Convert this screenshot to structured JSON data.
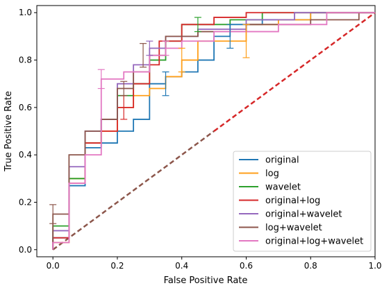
{
  "chart_data": {
    "type": "line",
    "title": "",
    "xlabel": "False Positive Rate",
    "ylabel": "True Positive Rate",
    "xlim": [
      -0.05,
      1.0
    ],
    "ylim": [
      -0.03,
      1.03
    ],
    "xticks": [
      0.0,
      0.2,
      0.4,
      0.6,
      0.8,
      1.0
    ],
    "yticks": [
      0.0,
      0.2,
      0.4,
      0.6,
      0.8,
      1.0
    ],
    "xtick_labels": [
      "0.0",
      "0.2",
      "0.4",
      "0.6",
      "0.8",
      "1.0"
    ],
    "ytick_labels": [
      "0.0",
      "0.2",
      "0.4",
      "0.6",
      "0.8",
      "1.0"
    ],
    "grid": false,
    "legend_position": "lower-right",
    "diagonal": {
      "points": [
        [
          0.0,
          0.0
        ],
        [
          1.0,
          1.0
        ]
      ],
      "colors": [
        "#8c564b",
        "#d62728"
      ],
      "style": "dashed"
    },
    "series": [
      {
        "name": "original",
        "color": "#1f77b4",
        "points": [
          [
            0,
            0
          ],
          [
            0,
            0.05
          ],
          [
            0.05,
            0.05
          ],
          [
            0.05,
            0.27
          ],
          [
            0.1,
            0.27
          ],
          [
            0.1,
            0.43
          ],
          [
            0.15,
            0.43
          ],
          [
            0.15,
            0.45
          ],
          [
            0.2,
            0.45
          ],
          [
            0.2,
            0.5
          ],
          [
            0.25,
            0.5
          ],
          [
            0.25,
            0.55
          ],
          [
            0.3,
            0.55
          ],
          [
            0.3,
            0.7
          ],
          [
            0.35,
            0.7
          ],
          [
            0.35,
            0.73
          ],
          [
            0.4,
            0.73
          ],
          [
            0.4,
            0.75
          ],
          [
            0.45,
            0.75
          ],
          [
            0.45,
            0.8
          ],
          [
            0.5,
            0.8
          ],
          [
            0.5,
            0.9
          ],
          [
            0.55,
            0.9
          ],
          [
            0.55,
            0.95
          ],
          [
            0.65,
            0.95
          ],
          [
            0.65,
            0.97
          ],
          [
            0.8,
            0.97
          ],
          [
            0.8,
            1.0
          ],
          [
            1.0,
            1.0
          ]
        ],
        "error_bars": [
          [
            0.35,
            0.7,
            0.05
          ],
          [
            0.55,
            0.9,
            0.05
          ]
        ]
      },
      {
        "name": "log",
        "color": "#ff9f1a",
        "points": [
          [
            0,
            0
          ],
          [
            0,
            0.03
          ],
          [
            0.05,
            0.03
          ],
          [
            0.05,
            0.3
          ],
          [
            0.1,
            0.3
          ],
          [
            0.1,
            0.45
          ],
          [
            0.15,
            0.45
          ],
          [
            0.15,
            0.5
          ],
          [
            0.2,
            0.5
          ],
          [
            0.2,
            0.6
          ],
          [
            0.25,
            0.6
          ],
          [
            0.25,
            0.65
          ],
          [
            0.3,
            0.65
          ],
          [
            0.3,
            0.68
          ],
          [
            0.35,
            0.68
          ],
          [
            0.35,
            0.73
          ],
          [
            0.4,
            0.73
          ],
          [
            0.4,
            0.8
          ],
          [
            0.45,
            0.8
          ],
          [
            0.45,
            0.88
          ],
          [
            0.6,
            0.88
          ],
          [
            0.6,
            0.95
          ],
          [
            0.7,
            0.95
          ],
          [
            0.7,
            0.97
          ],
          [
            0.8,
            0.97
          ],
          [
            0.8,
            1.0
          ],
          [
            1.0,
            1.0
          ]
        ],
        "error_bars": [
          [
            0.6,
            0.88,
            0.07
          ],
          [
            0.4,
            0.8,
            0.05
          ]
        ]
      },
      {
        "name": "wavelet",
        "color": "#2ca02c",
        "points": [
          [
            0,
            0
          ],
          [
            0,
            0.1
          ],
          [
            0.05,
            0.1
          ],
          [
            0.05,
            0.3
          ],
          [
            0.1,
            0.3
          ],
          [
            0.1,
            0.45
          ],
          [
            0.15,
            0.45
          ],
          [
            0.15,
            0.55
          ],
          [
            0.2,
            0.55
          ],
          [
            0.2,
            0.65
          ],
          [
            0.25,
            0.65
          ],
          [
            0.25,
            0.7
          ],
          [
            0.3,
            0.7
          ],
          [
            0.3,
            0.8
          ],
          [
            0.35,
            0.8
          ],
          [
            0.35,
            0.88
          ],
          [
            0.4,
            0.88
          ],
          [
            0.4,
            0.95
          ],
          [
            0.55,
            0.95
          ],
          [
            0.55,
            0.97
          ],
          [
            0.65,
            0.97
          ],
          [
            0.65,
            1.0
          ],
          [
            1.0,
            1.0
          ]
        ],
        "error_bars": [
          [
            0.45,
            0.95,
            0.03
          ]
        ]
      },
      {
        "name": "original+log",
        "color": "#d62728",
        "points": [
          [
            0,
            0
          ],
          [
            0,
            0.05
          ],
          [
            0.05,
            0.05
          ],
          [
            0.05,
            0.28
          ],
          [
            0.1,
            0.28
          ],
          [
            0.1,
            0.45
          ],
          [
            0.15,
            0.45
          ],
          [
            0.15,
            0.5
          ],
          [
            0.2,
            0.5
          ],
          [
            0.2,
            0.6
          ],
          [
            0.25,
            0.6
          ],
          [
            0.25,
            0.7
          ],
          [
            0.3,
            0.7
          ],
          [
            0.3,
            0.78
          ],
          [
            0.33,
            0.78
          ],
          [
            0.33,
            0.88
          ],
          [
            0.4,
            0.88
          ],
          [
            0.4,
            0.95
          ],
          [
            0.5,
            0.95
          ],
          [
            0.5,
            0.98
          ],
          [
            0.6,
            0.98
          ],
          [
            0.6,
            1.0
          ],
          [
            1.0,
            1.0
          ]
        ],
        "error_bars": [
          [
            0.22,
            0.6,
            0.05
          ]
        ]
      },
      {
        "name": "original+wavelet",
        "color": "#9467bd",
        "points": [
          [
            0,
            0
          ],
          [
            0,
            0.08
          ],
          [
            0.05,
            0.08
          ],
          [
            0.05,
            0.35
          ],
          [
            0.1,
            0.35
          ],
          [
            0.1,
            0.5
          ],
          [
            0.15,
            0.5
          ],
          [
            0.15,
            0.55
          ],
          [
            0.2,
            0.55
          ],
          [
            0.2,
            0.7
          ],
          [
            0.25,
            0.7
          ],
          [
            0.25,
            0.78
          ],
          [
            0.3,
            0.78
          ],
          [
            0.3,
            0.85
          ],
          [
            0.35,
            0.85
          ],
          [
            0.35,
            0.9
          ],
          [
            0.45,
            0.9
          ],
          [
            0.45,
            0.93
          ],
          [
            0.6,
            0.93
          ],
          [
            0.6,
            0.97
          ],
          [
            0.75,
            0.97
          ],
          [
            0.75,
            1.0
          ],
          [
            1.0,
            1.0
          ]
        ],
        "error_bars": [
          [
            0.3,
            0.85,
            0.03
          ]
        ]
      },
      {
        "name": "log+wavelet",
        "color": "#8c564b",
        "points": [
          [
            0,
            0
          ],
          [
            0,
            0.15
          ],
          [
            0.05,
            0.15
          ],
          [
            0.05,
            0.4
          ],
          [
            0.1,
            0.4
          ],
          [
            0.1,
            0.5
          ],
          [
            0.15,
            0.5
          ],
          [
            0.15,
            0.55
          ],
          [
            0.2,
            0.55
          ],
          [
            0.2,
            0.68
          ],
          [
            0.25,
            0.68
          ],
          [
            0.25,
            0.75
          ],
          [
            0.3,
            0.75
          ],
          [
            0.3,
            0.82
          ],
          [
            0.35,
            0.82
          ],
          [
            0.35,
            0.9
          ],
          [
            0.45,
            0.9
          ],
          [
            0.45,
            0.92
          ],
          [
            0.6,
            0.92
          ],
          [
            0.6,
            0.95
          ],
          [
            0.8,
            0.95
          ],
          [
            0.8,
            0.97
          ],
          [
            0.95,
            0.97
          ],
          [
            0.95,
            1.0
          ],
          [
            1.0,
            1.0
          ]
        ],
        "error_bars": [
          [
            0.0,
            0.15,
            0.04
          ],
          [
            0.28,
            0.82,
            0.05
          ],
          [
            0.22,
            0.68,
            0.03
          ]
        ]
      },
      {
        "name": "original+log+wavelet",
        "color": "#e377c2",
        "points": [
          [
            0,
            0
          ],
          [
            0,
            0.03
          ],
          [
            0.05,
            0.03
          ],
          [
            0.05,
            0.28
          ],
          [
            0.1,
            0.28
          ],
          [
            0.1,
            0.4
          ],
          [
            0.15,
            0.4
          ],
          [
            0.15,
            0.72
          ],
          [
            0.22,
            0.72
          ],
          [
            0.22,
            0.75
          ],
          [
            0.3,
            0.75
          ],
          [
            0.3,
            0.82
          ],
          [
            0.35,
            0.82
          ],
          [
            0.35,
            0.85
          ],
          [
            0.4,
            0.85
          ],
          [
            0.4,
            0.88
          ],
          [
            0.5,
            0.88
          ],
          [
            0.5,
            0.92
          ],
          [
            0.7,
            0.92
          ],
          [
            0.7,
            0.95
          ],
          [
            0.85,
            0.95
          ],
          [
            0.85,
            1.0
          ],
          [
            1.0,
            1.0
          ]
        ],
        "error_bars": [
          [
            0.15,
            0.72,
            0.04
          ],
          [
            0.35,
            0.85,
            0.03
          ]
        ]
      }
    ]
  }
}
